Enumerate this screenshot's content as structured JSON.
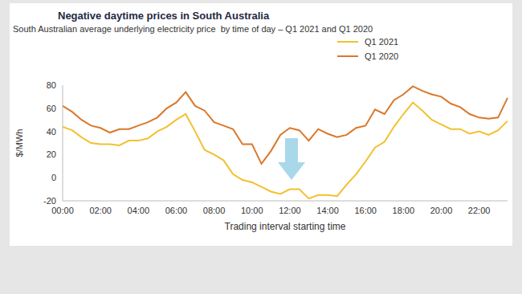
{
  "chart_data": {
    "type": "line",
    "title": "Negative daytime prices in South Australia",
    "subtitle": "South Australian average underlying electricity price  by time of day – Q1 2021 and Q1 2020",
    "x_label": "Trading interval starting time",
    "y_label": "$/MWh",
    "categories": [
      "00:00",
      null,
      null,
      null,
      "02:00",
      null,
      null,
      null,
      "04:00",
      null,
      null,
      null,
      "06:00",
      null,
      null,
      null,
      "08:00",
      null,
      null,
      null,
      "10:00",
      null,
      null,
      null,
      "12:00",
      null,
      null,
      null,
      "14:00",
      null,
      null,
      null,
      "16:00",
      null,
      null,
      null,
      "18:00",
      null,
      null,
      null,
      "20:00",
      null,
      null,
      null,
      "22:00",
      null,
      null,
      null
    ],
    "series": [
      {
        "name": "Q1 2021",
        "color": "#f2c12e",
        "values": [
          44,
          41,
          35,
          30,
          29,
          29,
          28,
          32,
          32,
          34,
          40,
          44,
          50,
          55,
          40,
          24,
          20,
          15,
          3,
          -2,
          -4,
          -8,
          -12,
          -14,
          -10,
          -10,
          -18,
          -15,
          -15,
          -16,
          -6,
          3,
          14,
          26,
          31,
          44,
          55,
          65,
          58,
          50,
          46,
          42,
          42,
          38,
          40,
          37,
          41,
          49
        ]
      },
      {
        "name": "Q1 2020",
        "color": "#d9782b",
        "values": [
          62,
          57,
          50,
          45,
          43,
          39,
          42,
          42,
          45,
          48,
          52,
          60,
          65,
          74,
          62,
          58,
          48,
          45,
          42,
          29,
          29,
          12,
          23,
          37,
          43,
          41,
          32,
          42,
          38,
          35,
          37,
          43,
          45,
          59,
          55,
          67,
          72,
          79,
          75,
          72,
          70,
          64,
          61,
          55,
          52,
          51,
          52,
          69
        ]
      }
    ],
    "ylim": [
      -20,
      80
    ],
    "yticks": [
      -20,
      0,
      20,
      40,
      60,
      80
    ],
    "grid": false,
    "legend": "top-right"
  }
}
